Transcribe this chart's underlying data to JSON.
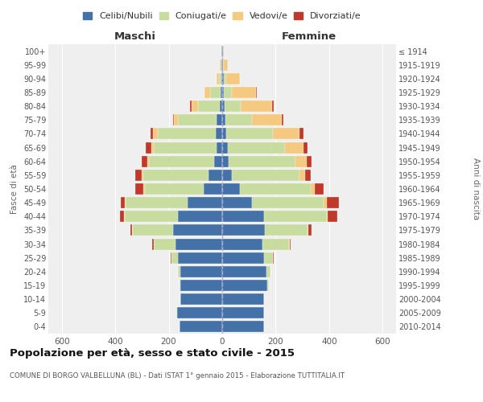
{
  "age_groups": [
    "0-4",
    "5-9",
    "10-14",
    "15-19",
    "20-24",
    "25-29",
    "30-34",
    "35-39",
    "40-44",
    "45-49",
    "50-54",
    "55-59",
    "60-64",
    "65-69",
    "70-74",
    "75-79",
    "80-84",
    "85-89",
    "90-94",
    "95-99",
    "100+"
  ],
  "birth_years": [
    "2010-2014",
    "2005-2009",
    "2000-2004",
    "1995-1999",
    "1990-1994",
    "1985-1989",
    "1980-1984",
    "1975-1979",
    "1970-1974",
    "1965-1969",
    "1960-1964",
    "1955-1959",
    "1950-1954",
    "1945-1949",
    "1940-1944",
    "1935-1939",
    "1930-1934",
    "1925-1929",
    "1920-1924",
    "1915-1919",
    "≤ 1914"
  ],
  "males": {
    "celibi": [
      160,
      170,
      155,
      155,
      155,
      165,
      175,
      185,
      165,
      130,
      70,
      50,
      30,
      20,
      25,
      20,
      10,
      5,
      3,
      2,
      2
    ],
    "coniugati": [
      0,
      2,
      2,
      3,
      10,
      25,
      80,
      150,
      200,
      230,
      220,
      245,
      245,
      235,
      215,
      145,
      80,
      40,
      8,
      2,
      0
    ],
    "vedovi": [
      0,
      0,
      0,
      0,
      1,
      1,
      1,
      1,
      2,
      3,
      5,
      5,
      5,
      10,
      18,
      15,
      25,
      20,
      10,
      5,
      0
    ],
    "divorziati": [
      0,
      0,
      0,
      0,
      1,
      2,
      5,
      8,
      15,
      15,
      30,
      25,
      20,
      20,
      10,
      5,
      5,
      0,
      0,
      0,
      0
    ]
  },
  "females": {
    "nubili": [
      155,
      155,
      155,
      170,
      165,
      155,
      150,
      160,
      155,
      110,
      65,
      35,
      25,
      20,
      15,
      12,
      8,
      5,
      5,
      3,
      2
    ],
    "coniugate": [
      0,
      2,
      2,
      5,
      15,
      35,
      100,
      160,
      235,
      270,
      265,
      255,
      250,
      215,
      175,
      100,
      60,
      30,
      10,
      2,
      0
    ],
    "vedove": [
      0,
      0,
      0,
      0,
      1,
      1,
      2,
      3,
      5,
      10,
      15,
      20,
      40,
      70,
      100,
      110,
      120,
      90,
      50,
      15,
      3
    ],
    "divorziate": [
      0,
      0,
      0,
      0,
      1,
      2,
      5,
      12,
      35,
      45,
      35,
      20,
      20,
      15,
      15,
      8,
      5,
      5,
      2,
      0,
      0
    ]
  },
  "colors": {
    "celibi": "#4472a8",
    "coniugati": "#c8dca0",
    "vedovi": "#f5c97f",
    "divorziati": "#c0392b"
  },
  "xlim": 650,
  "title": "Popolazione per età, sesso e stato civile - 2015",
  "subtitle": "COMUNE DI BORGO VALBELLUNA (BL) - Dati ISTAT 1° gennaio 2015 - Elaborazione TUTTITALIA.IT",
  "legend_labels": [
    "Celibi/Nubili",
    "Coniugati/e",
    "Vedovi/e",
    "Divorziati/e"
  ],
  "maschi_label": "Maschi",
  "femmine_label": "Femmine",
  "fasce_label": "Fasce di età",
  "anni_label": "Anni di nascita"
}
